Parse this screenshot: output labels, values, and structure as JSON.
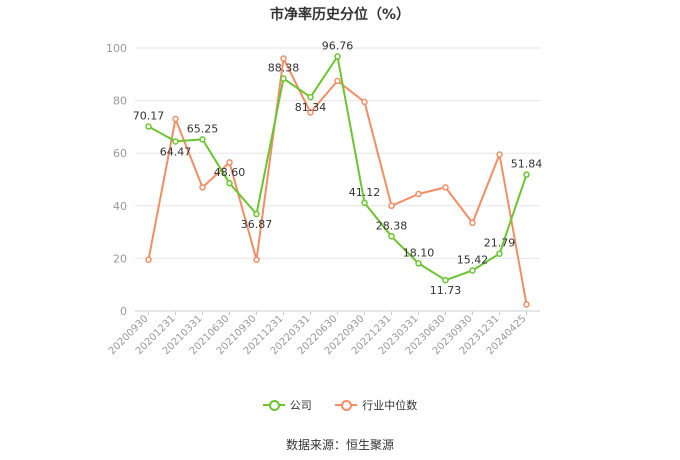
{
  "title": "市净率历史分位（%）",
  "source_text": "数据来源：恒生聚源",
  "colors": {
    "company": "#6cc42f",
    "industry": "#f28d66",
    "grid": "#e6e6e6",
    "axis_text": "#999999"
  },
  "chart_data": {
    "type": "line",
    "title": "市净率历史分位（%）",
    "x": [
      "20200930",
      "20201231",
      "20210331",
      "20210630",
      "20210930",
      "20211231",
      "20220331",
      "20220630",
      "20220930",
      "20221231",
      "20230331",
      "20230630",
      "20230930",
      "20231231",
      "20240425"
    ],
    "ylim": [
      0,
      100
    ],
    "yticks": [
      0,
      20,
      40,
      60,
      80,
      100
    ],
    "grid": true,
    "legend_position": "bottom",
    "series": [
      {
        "name": "公司",
        "color": "#6cc42f",
        "values": [
          70.17,
          64.47,
          65.25,
          48.6,
          36.87,
          88.38,
          81.34,
          96.76,
          41.12,
          28.38,
          18.1,
          11.73,
          15.42,
          21.79,
          51.84
        ],
        "labels": [
          "70.17",
          "64.47",
          "65.25",
          "48.60",
          "36.87",
          "88.38",
          "81.34",
          "96.76",
          "41.12",
          "28.38",
          "18.10",
          "11.73",
          "15.42",
          "21.79",
          "51.84"
        ]
      },
      {
        "name": "行业中位数",
        "color": "#f28d66",
        "values": [
          19.5,
          73,
          47,
          56.5,
          19.5,
          96,
          75.5,
          87.5,
          79.5,
          40,
          44.5,
          47,
          33.5,
          59.5,
          2.5
        ]
      }
    ]
  }
}
